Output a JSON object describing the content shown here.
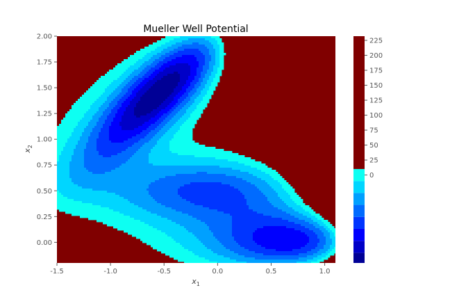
{
  "chart_data": {
    "type": "contour",
    "title": "Mueller Well Potential",
    "xlabel_base": "x",
    "xlabel_sub": "1",
    "ylabel_base": "x",
    "ylabel_sub": "2",
    "xlim": [
      -1.5,
      1.1
    ],
    "ylim": [
      -0.2,
      2.0
    ],
    "x_ticks": [
      "-1.5",
      "-1.0",
      "-0.5",
      "0.0",
      "0.5",
      "1.0"
    ],
    "x_tick_values": [
      -1.5,
      -1.0,
      -0.5,
      0.0,
      0.5,
      1.0
    ],
    "y_ticks": [
      "0.00",
      "0.25",
      "0.50",
      "0.75",
      "1.00",
      "1.25",
      "1.50",
      "1.75",
      "2.00"
    ],
    "y_tick_values": [
      0.0,
      0.25,
      0.5,
      0.75,
      1.0,
      1.25,
      1.5,
      1.75,
      2.0
    ],
    "colorbar": {
      "min": -147,
      "max": 232,
      "ticks": [
        "0",
        "25",
        "50",
        "75",
        "100",
        "125",
        "150",
        "175",
        "200",
        "225"
      ],
      "tick_values": [
        0,
        25,
        50,
        75,
        100,
        125,
        150,
        175,
        200,
        225
      ],
      "colormap": "jet"
    },
    "levels": [
      -147,
      -130,
      -110,
      -90,
      -70,
      -50,
      -30,
      -10,
      10
    ],
    "minima": [
      {
        "x": -0.558,
        "y": 1.442,
        "value": -146.7
      },
      {
        "x": 0.623,
        "y": 0.028,
        "value": -108.2
      },
      {
        "x": -0.05,
        "y": 0.467,
        "value": -80.8
      }
    ],
    "grid": false
  }
}
